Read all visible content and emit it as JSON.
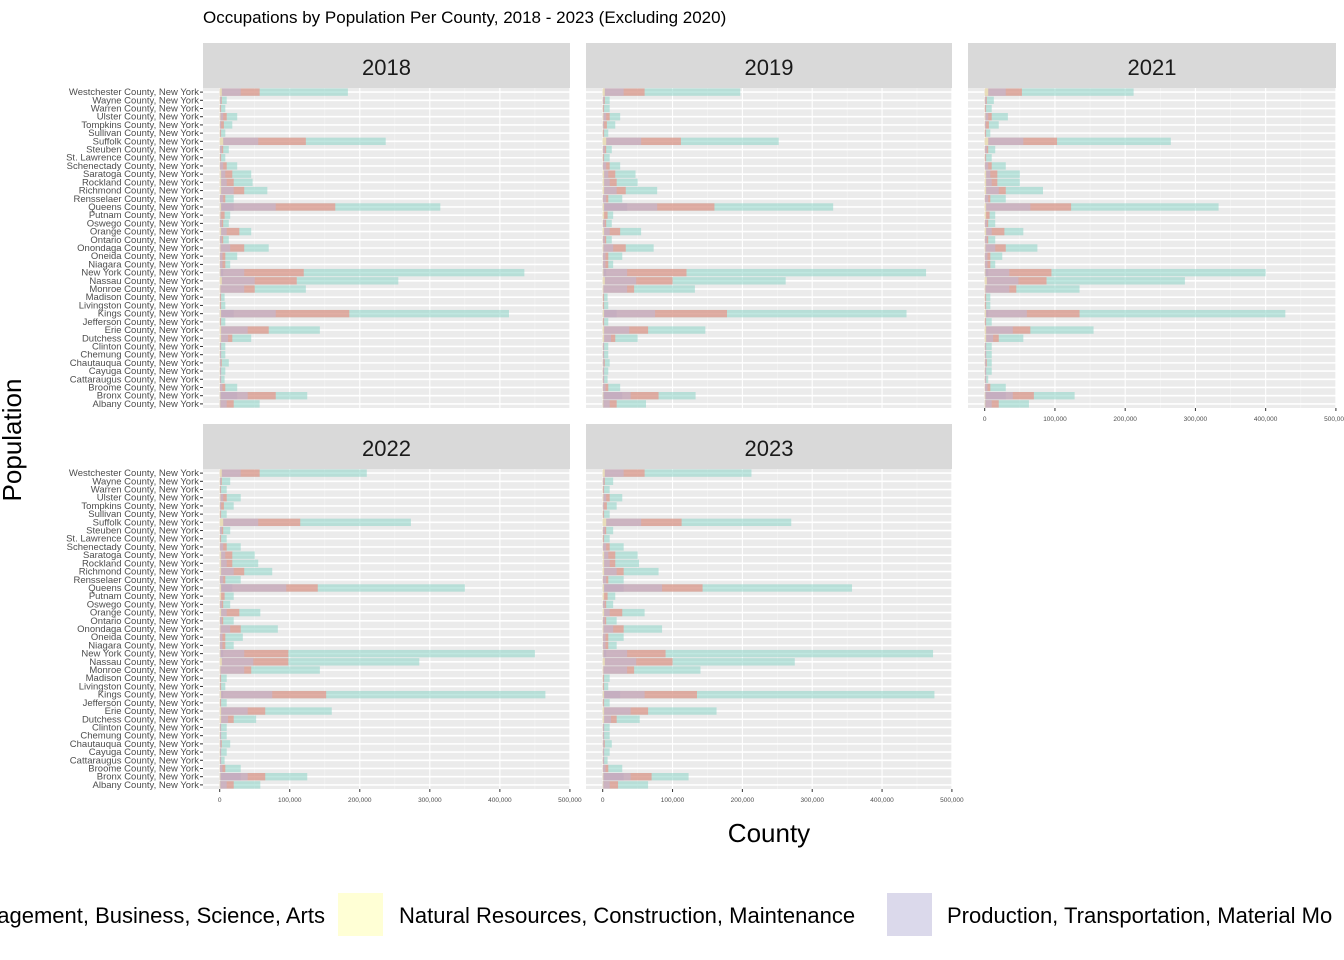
{
  "chart_data": {
    "type": "bar",
    "orientation": "horizontal",
    "stacked": true,
    "title": "Occupations by Population Per County, 2018 - 2023 (Excluding 2020)",
    "xlabel": "County",
    "ylabel": "Population",
    "xlim": [
      0,
      500000
    ],
    "x_ticks": [
      0,
      100000,
      200000,
      300000,
      400000,
      500000
    ],
    "x_tick_labels": [
      "0",
      "100,000",
      "200,000",
      "300,000",
      "400,000",
      "500,000"
    ],
    "grid": true,
    "legend_position": "bottom",
    "facets": [
      "2018",
      "2019",
      "2021",
      "2022",
      "2023"
    ],
    "categories": [
      "Albany County, New York",
      "Bronx County, New York",
      "Broome County, New York",
      "Cattaraugus County, New York",
      "Cayuga County, New York",
      "Chautauqua County, New York",
      "Chemung County, New York",
      "Clinton County, New York",
      "Dutchess County, New York",
      "Erie County, New York",
      "Jefferson County, New York",
      "Kings County, New York",
      "Livingston County, New York",
      "Madison County, New York",
      "Monroe County, New York",
      "Nassau County, New York",
      "New York County, New York",
      "Niagara County, New York",
      "Oneida County, New York",
      "Onondaga County, New York",
      "Ontario County, New York",
      "Orange County, New York",
      "Oswego County, New York",
      "Putnam County, New York",
      "Queens County, New York",
      "Rensselaer County, New York",
      "Richmond County, New York",
      "Rockland County, New York",
      "Saratoga County, New York",
      "Schenectady County, New York",
      "St. Lawrence County, New York",
      "Steuben County, New York",
      "Suffolk County, New York",
      "Sullivan County, New York",
      "Tompkins County, New York",
      "Ulster County, New York",
      "Warren County, New York",
      "Wayne County, New York",
      "Westchester County, New York"
    ],
    "series": [
      {
        "name": "Management, Business, Science, Arts",
        "color": "#8dd3c7"
      },
      {
        "name": "Natural Resources, Construction, Maintenance",
        "color": "#ffffb3"
      },
      {
        "name": "Production, Transportation, Material Mo",
        "color": "#bebada"
      },
      {
        "name": "",
        "color": "#fb8072"
      },
      {
        "name": "",
        "color": "#80b1d3"
      }
    ],
    "panels": [
      {
        "label": "2018",
        "totals": [
          57000,
          125000,
          25000,
          7000,
          8000,
          13000,
          8000,
          8000,
          45000,
          143000,
          8000,
          413000,
          8000,
          7000,
          123000,
          255000,
          435000,
          15000,
          25000,
          70000,
          13000,
          45000,
          13000,
          15000,
          315000,
          20000,
          68000,
          47000,
          45000,
          25000,
          8000,
          13000,
          237000,
          8000,
          18000,
          25000,
          8000,
          10000,
          183000
        ],
        "blue": [
          2000,
          25000,
          0,
          0,
          0,
          0,
          0,
          0,
          0,
          0,
          0,
          20000,
          0,
          0,
          0,
          0,
          5000,
          0,
          0,
          0,
          0,
          0,
          0,
          0,
          20000,
          0,
          0,
          0,
          0,
          0,
          0,
          0,
          0,
          0,
          0,
          0,
          0,
          0,
          0
        ],
        "red": [
          20000,
          80000,
          8000,
          2000,
          2000,
          3000,
          2000,
          2000,
          18000,
          70000,
          2000,
          185000,
          2000,
          2000,
          50000,
          110000,
          120000,
          8000,
          8000,
          35000,
          5000,
          28000,
          5000,
          7000,
          165000,
          8000,
          35000,
          20000,
          18000,
          10000,
          2000,
          5000,
          123000,
          2000,
          6000,
          10000,
          2000,
          3000,
          57000
        ],
        "purple": [
          10000,
          40000,
          4000,
          2000,
          2000,
          2000,
          2000,
          2000,
          12000,
          40000,
          1000,
          80000,
          1000,
          1000,
          35000,
          50000,
          35000,
          4000,
          4000,
          15000,
          3000,
          10000,
          3000,
          2000,
          80000,
          5000,
          20000,
          10000,
          8000,
          5000,
          1000,
          3000,
          55000,
          1000,
          2000,
          5000,
          1000,
          2000,
          30000
        ],
        "yellow": [
          1000,
          1000,
          500,
          500,
          500,
          500,
          500,
          500,
          2000,
          2000,
          500,
          2000,
          500,
          500,
          1000,
          3000,
          1000,
          500,
          500,
          1000,
          500,
          2000,
          500,
          1000,
          2000,
          500,
          2000,
          2000,
          2000,
          500,
          500,
          500,
          5000,
          500,
          500,
          1000,
          500,
          500,
          3000
        ]
      },
      {
        "label": "2019",
        "totals": [
          62000,
          133000,
          25000,
          7000,
          8000,
          10000,
          8000,
          8000,
          50000,
          147000,
          8000,
          435000,
          8000,
          7000,
          132000,
          262000,
          463000,
          15000,
          28000,
          73000,
          13000,
          55000,
          13000,
          15000,
          330000,
          28000,
          78000,
          50000,
          47000,
          25000,
          10000,
          13000,
          252000,
          8000,
          18000,
          25000,
          10000,
          10000,
          197000
        ],
        "blue": [
          2000,
          28000,
          0,
          0,
          0,
          0,
          0,
          0,
          0,
          0,
          0,
          20000,
          0,
          0,
          0,
          0,
          5000,
          0,
          0,
          0,
          0,
          0,
          0,
          0,
          35000,
          0,
          0,
          0,
          0,
          0,
          0,
          0,
          0,
          0,
          0,
          0,
          0,
          0,
          0
        ],
        "red": [
          20000,
          80000,
          8000,
          2000,
          2000,
          3000,
          2000,
          2000,
          18000,
          65000,
          2000,
          178000,
          2000,
          2000,
          45000,
          100000,
          120000,
          8000,
          8000,
          33000,
          5000,
          25000,
          5000,
          7000,
          160000,
          8000,
          33000,
          20000,
          18000,
          10000,
          2000,
          5000,
          112000,
          2000,
          6000,
          10000,
          2000,
          3000,
          60000
        ],
        "purple": [
          10000,
          40000,
          4000,
          2000,
          2000,
          2000,
          2000,
          2000,
          12000,
          38000,
          1000,
          75000,
          1000,
          1000,
          35000,
          48000,
          35000,
          4000,
          4000,
          15000,
          3000,
          10000,
          3000,
          2000,
          78000,
          5000,
          20000,
          10000,
          8000,
          5000,
          1000,
          3000,
          55000,
          1000,
          2000,
          5000,
          1000,
          2000,
          30000
        ],
        "yellow": [
          1000,
          1000,
          500,
          500,
          500,
          500,
          500,
          500,
          2000,
          2000,
          500,
          2000,
          500,
          500,
          1000,
          3000,
          1000,
          500,
          500,
          1000,
          500,
          2000,
          500,
          2000,
          2000,
          500,
          2000,
          2000,
          2000,
          500,
          500,
          500,
          5000,
          500,
          500,
          1000,
          500,
          500,
          3000
        ]
      },
      {
        "label": "2021",
        "totals": [
          63000,
          128000,
          30000,
          5000,
          10000,
          10000,
          10000,
          10000,
          55000,
          155000,
          10000,
          428000,
          8000,
          8000,
          135000,
          285000,
          400000,
          15000,
          25000,
          75000,
          15000,
          55000,
          15000,
          15000,
          333000,
          30000,
          83000,
          50000,
          50000,
          30000,
          10000,
          15000,
          265000,
          8000,
          20000,
          33000,
          10000,
          13000,
          212000
        ],
        "blue": [
          2000,
          30000,
          0,
          0,
          0,
          0,
          0,
          0,
          0,
          0,
          0,
          5000,
          0,
          0,
          0,
          0,
          5000,
          0,
          0,
          0,
          0,
          0,
          0,
          0,
          0,
          0,
          0,
          0,
          0,
          0,
          0,
          0,
          0,
          0,
          0,
          0,
          0,
          0,
          0
        ],
        "red": [
          20000,
          70000,
          8000,
          2000,
          2000,
          3000,
          2000,
          2000,
          20000,
          65000,
          2000,
          135000,
          2000,
          2000,
          45000,
          88000,
          95000,
          8000,
          8000,
          30000,
          5000,
          28000,
          5000,
          7000,
          123000,
          8000,
          30000,
          18000,
          18000,
          10000,
          2000,
          5000,
          103000,
          2000,
          6000,
          10000,
          2000,
          3000,
          53000
        ],
        "purple": [
          10000,
          40000,
          4000,
          2000,
          2000,
          2000,
          2000,
          2000,
          12000,
          40000,
          1000,
          60000,
          1000,
          1000,
          35000,
          48000,
          35000,
          4000,
          4000,
          15000,
          3000,
          10000,
          3000,
          2000,
          65000,
          5000,
          20000,
          10000,
          8000,
          5000,
          1000,
          3000,
          55000,
          1000,
          2000,
          5000,
          1000,
          2000,
          30000
        ],
        "yellow": [
          1000,
          1000,
          500,
          500,
          500,
          500,
          500,
          500,
          2000,
          2000,
          500,
          2000,
          500,
          500,
          1000,
          3000,
          1000,
          500,
          500,
          1000,
          500,
          2000,
          500,
          2000,
          2000,
          500,
          2000,
          2000,
          2000,
          500,
          500,
          500,
          5000,
          500,
          500,
          1000,
          500,
          500,
          5000
        ]
      },
      {
        "label": "2022",
        "totals": [
          58000,
          125000,
          30000,
          7000,
          10000,
          15000,
          10000,
          10000,
          52000,
          160000,
          10000,
          465000,
          8000,
          10000,
          143000,
          285000,
          450000,
          20000,
          33000,
          83000,
          20000,
          58000,
          15000,
          20000,
          350000,
          30000,
          75000,
          55000,
          50000,
          30000,
          10000,
          15000,
          273000,
          10000,
          20000,
          30000,
          10000,
          15000,
          210000
        ],
        "blue": [
          2000,
          30000,
          0,
          0,
          0,
          0,
          0,
          0,
          0,
          0,
          0,
          5000,
          0,
          0,
          0,
          0,
          5000,
          0,
          0,
          0,
          0,
          0,
          0,
          0,
          18000,
          0,
          0,
          0,
          0,
          0,
          0,
          0,
          0,
          0,
          0,
          0,
          0,
          0,
          0
        ],
        "red": [
          20000,
          65000,
          8000,
          2000,
          2000,
          3000,
          2000,
          2000,
          20000,
          65000,
          2000,
          152000,
          2000,
          2000,
          45000,
          98000,
          98000,
          8000,
          8000,
          30000,
          5000,
          28000,
          5000,
          7000,
          140000,
          8000,
          35000,
          18000,
          18000,
          10000,
          2000,
          5000,
          115000,
          2000,
          6000,
          10000,
          2000,
          3000,
          57000
        ],
        "purple": [
          10000,
          40000,
          4000,
          2000,
          2000,
          2000,
          2000,
          2000,
          12000,
          40000,
          1000,
          75000,
          1000,
          1000,
          35000,
          48000,
          35000,
          4000,
          4000,
          15000,
          3000,
          10000,
          3000,
          2000,
          95000,
          5000,
          20000,
          10000,
          8000,
          5000,
          1000,
          3000,
          55000,
          1000,
          2000,
          5000,
          1000,
          2000,
          30000
        ],
        "yellow": [
          1000,
          1000,
          500,
          500,
          500,
          500,
          500,
          500,
          2000,
          2000,
          500,
          2000,
          500,
          500,
          1000,
          3000,
          1000,
          500,
          500,
          1000,
          500,
          2000,
          500,
          2000,
          2000,
          500,
          2000,
          2000,
          2000,
          500,
          500,
          500,
          5000,
          500,
          500,
          1000,
          500,
          500,
          3000
        ]
      },
      {
        "label": "2023",
        "totals": [
          65000,
          123000,
          28000,
          7000,
          10000,
          13000,
          10000,
          10000,
          53000,
          163000,
          10000,
          475000,
          8000,
          10000,
          140000,
          275000,
          473000,
          20000,
          30000,
          85000,
          20000,
          60000,
          15000,
          18000,
          357000,
          30000,
          80000,
          52000,
          50000,
          30000,
          10000,
          15000,
          270000,
          10000,
          20000,
          28000,
          10000,
          15000,
          213000
        ],
        "blue": [
          2000,
          30000,
          0,
          0,
          0,
          0,
          0,
          0,
          0,
          0,
          0,
          25000,
          0,
          0,
          0,
          0,
          5000,
          0,
          0,
          0,
          0,
          0,
          0,
          0,
          30000,
          0,
          0,
          0,
          0,
          0,
          0,
          0,
          0,
          0,
          0,
          0,
          0,
          0,
          0
        ],
        "red": [
          22000,
          70000,
          8000,
          2000,
          2000,
          3000,
          2000,
          2000,
          20000,
          65000,
          2000,
          135000,
          2000,
          2000,
          45000,
          100000,
          90000,
          8000,
          8000,
          30000,
          5000,
          28000,
          5000,
          7000,
          143000,
          8000,
          30000,
          18000,
          18000,
          10000,
          2000,
          5000,
          113000,
          2000,
          6000,
          10000,
          2000,
          3000,
          60000
        ],
        "purple": [
          10000,
          40000,
          4000,
          2000,
          2000,
          2000,
          2000,
          2000,
          12000,
          40000,
          1000,
          60000,
          1000,
          1000,
          35000,
          48000,
          35000,
          4000,
          4000,
          15000,
          3000,
          10000,
          3000,
          2000,
          85000,
          5000,
          20000,
          10000,
          8000,
          5000,
          1000,
          3000,
          55000,
          1000,
          2000,
          5000,
          1000,
          2000,
          30000
        ],
        "yellow": [
          1000,
          1000,
          500,
          500,
          500,
          500,
          500,
          500,
          2000,
          2000,
          500,
          2000,
          500,
          500,
          1000,
          3000,
          1000,
          500,
          500,
          1000,
          500,
          2000,
          500,
          2000,
          2000,
          500,
          2000,
          2000,
          2000,
          500,
          500,
          500,
          5000,
          500,
          500,
          1000,
          500,
          500,
          3000
        ]
      }
    ]
  }
}
